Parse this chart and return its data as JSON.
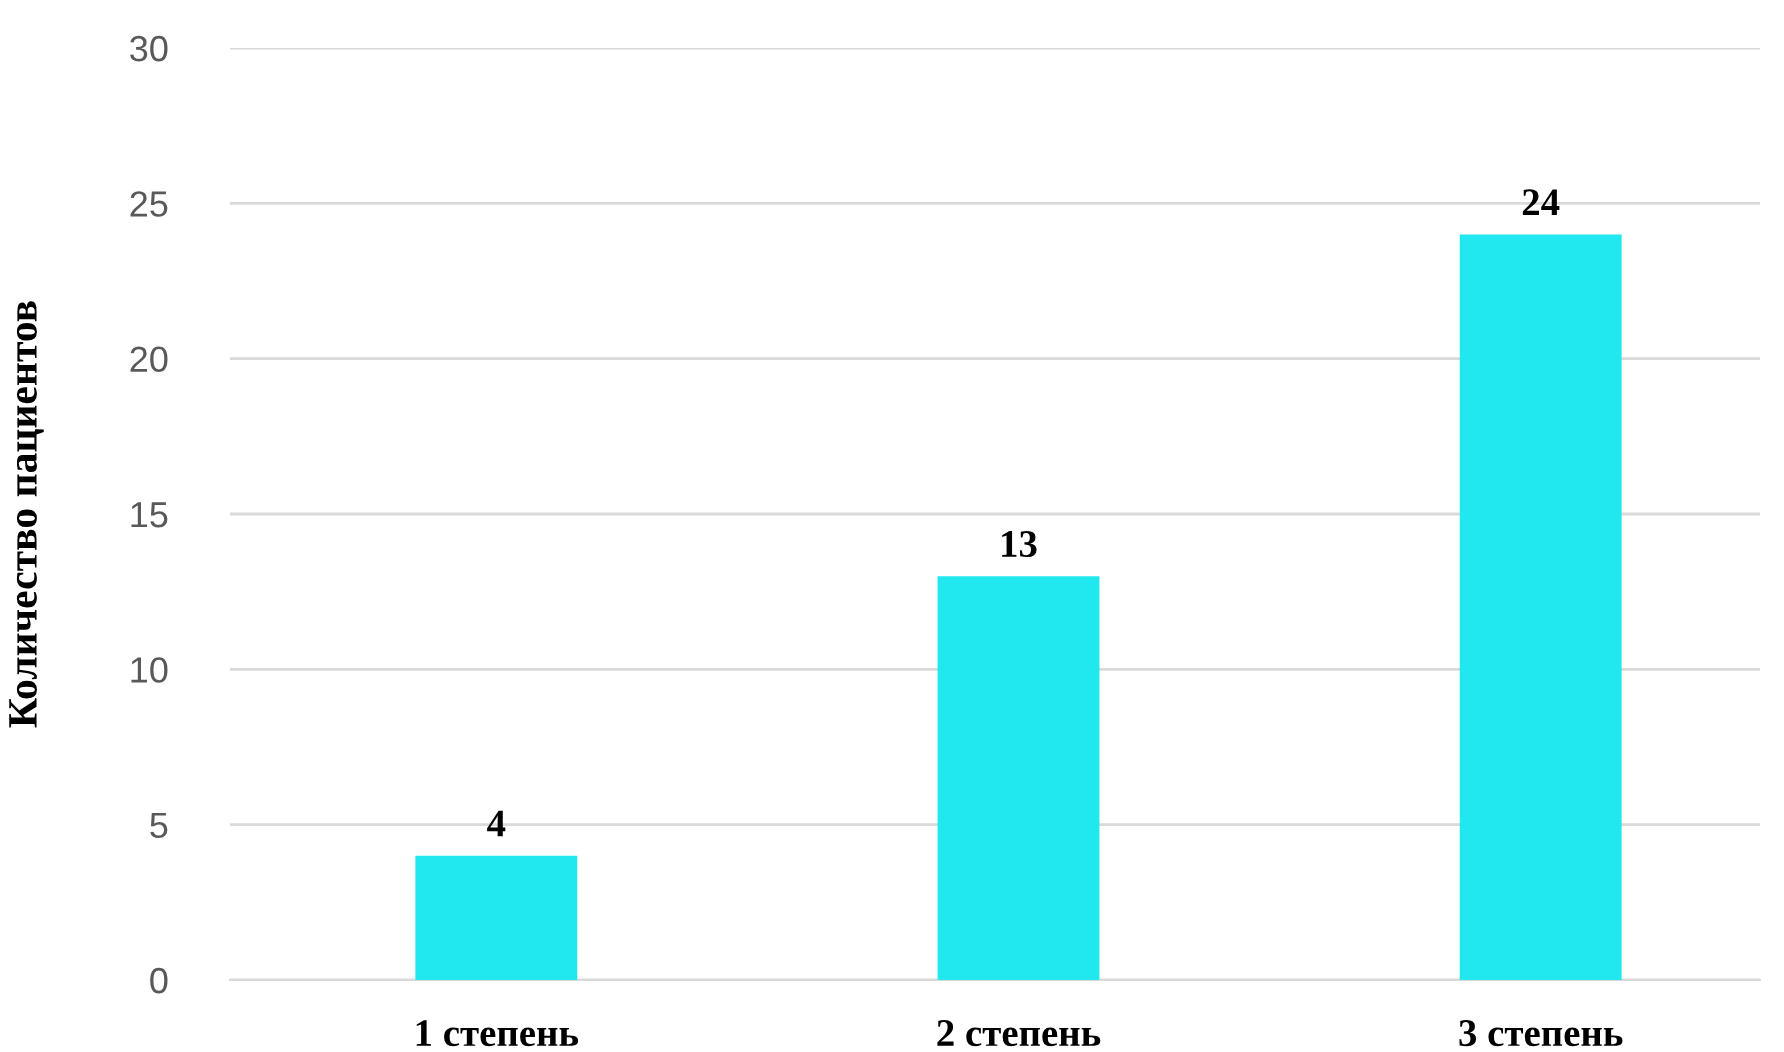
{
  "chart_data": {
    "type": "bar",
    "ylabel": "Количество пациентов",
    "categories": [
      "1 степень",
      "2 степень",
      "3 степень"
    ],
    "values": [
      4,
      13,
      24
    ],
    "color": "#21e8ee",
    "ylim": [
      0,
      30
    ],
    "yticks": [
      0,
      5,
      10,
      15,
      20,
      25,
      30
    ],
    "grid": "y",
    "data_labels": true
  }
}
